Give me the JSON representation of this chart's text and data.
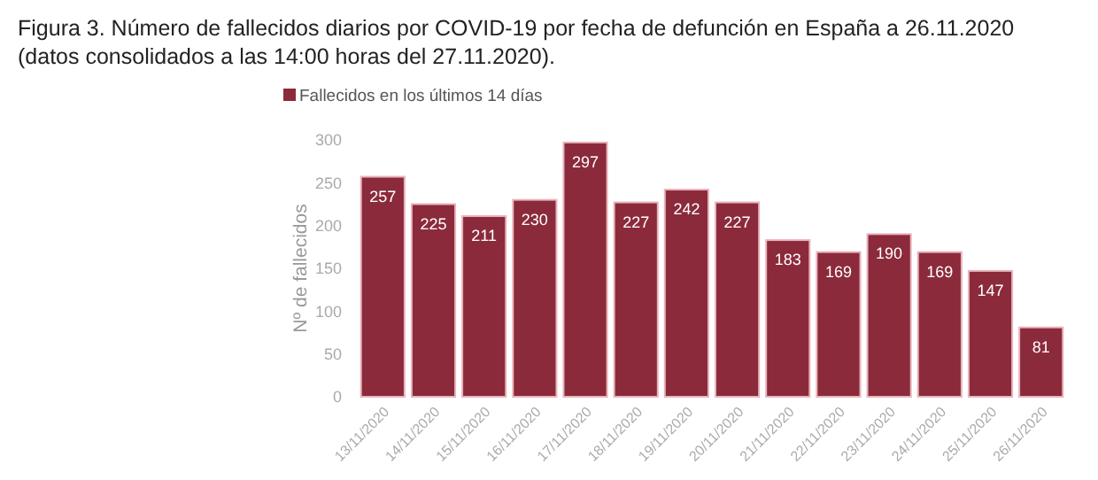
{
  "chart_data": {
    "type": "bar",
    "title": "Figura 3. Número de fallecidos diarios por COVID-19 por fecha de defunción en España a 26.11.2020 (datos consolidados a las 14:00 horas del 27.11.2020).",
    "ylabel": "Nº de fallecidos",
    "categories": [
      "13/11/2020",
      "14/11/2020",
      "15/11/2020",
      "16/11/2020",
      "17/11/2020",
      "18/11/2020",
      "19/11/2020",
      "20/11/2020",
      "21/11/2020",
      "22/11/2020",
      "23/11/2020",
      "24/11/2020",
      "25/11/2020",
      "26/11/2020"
    ],
    "series": [
      {
        "name": "Fallecidos en los últimos 14 días",
        "color": "#8b2a3b",
        "values": [
          257,
          225,
          211,
          230,
          297,
          227,
          242,
          227,
          183,
          169,
          190,
          169,
          147,
          81
        ]
      }
    ],
    "ylim": [
      0,
      300
    ],
    "yticks": [
      0,
      50,
      100,
      150,
      200,
      250,
      300
    ],
    "data_labels": true,
    "legend": "top left",
    "grid": false
  }
}
